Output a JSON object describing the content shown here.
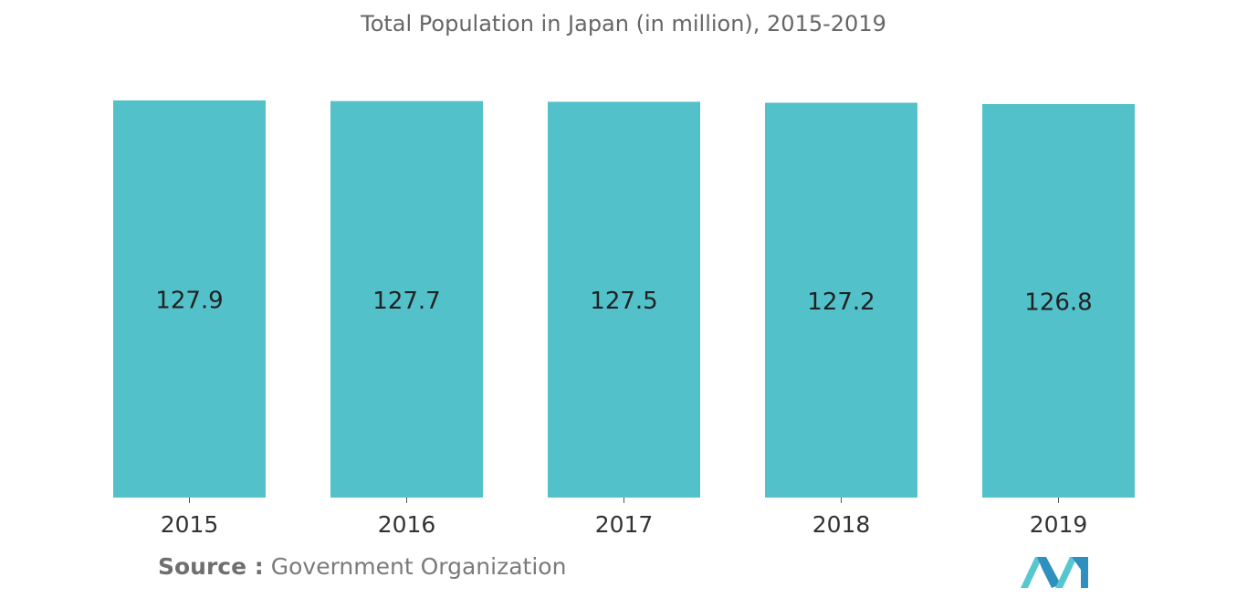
{
  "chart_data": {
    "type": "bar",
    "title": "Total Population in Japan (in million), 2015-2019",
    "categories": [
      "2015",
      "2016",
      "2017",
      "2018",
      "2019"
    ],
    "values": [
      127.9,
      127.7,
      127.5,
      127.2,
      126.8
    ],
    "data_labels": [
      "127.9",
      "127.7",
      "127.5",
      "127.2",
      "126.8"
    ],
    "xlabel": "",
    "ylabel": "",
    "grid": false,
    "y_axis_visible": false,
    "legend": "none"
  },
  "colors": {
    "bar": "#52c1ca",
    "title": "#666666",
    "text": "#222222",
    "axis": "#555555",
    "logo_dark": "#2f8fbf",
    "logo_light": "#56c7cf"
  },
  "source": {
    "label": "Source :",
    "text": "Government Organization"
  },
  "logo": {
    "icon": "mordor-intelligence-logo"
  }
}
